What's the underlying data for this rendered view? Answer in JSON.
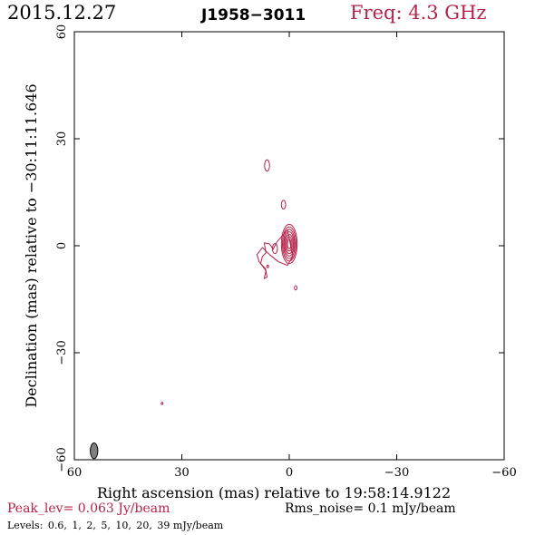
{
  "header": {
    "date": "2015.12.27",
    "source": "J1958−3011",
    "freq": "Freq: 4.3 GHz"
  },
  "footer": {
    "peak": "Peak_lev=  0.063 Jy/beam",
    "rms": "Rms_noise=   0.1 mJy/beam",
    "levels_label": "Levels:",
    "levels": [
      "0.6,",
      "1,",
      "2,",
      "5,",
      "10,",
      "20,",
      "39 mJy/beam"
    ]
  },
  "colors": {
    "contour": "#b5234a",
    "beam_fill": "#808080",
    "axis": "#000000"
  },
  "chart_data": {
    "type": "contour",
    "xlabel": "Right ascension (mas) relative to 19:58:14.9122",
    "ylabel": "Declination (mas) relative to −30:11:11.646",
    "xlim": [
      60,
      -60
    ],
    "ylim": [
      -60,
      60
    ],
    "xticks": [
      60,
      30,
      0,
      -30,
      -60
    ],
    "yticks": [
      -60,
      -30,
      0,
      30,
      60
    ],
    "xtick_labels": [
      "60",
      "30",
      "0",
      "−30",
      "−60"
    ],
    "ytick_labels": [
      "−60",
      "−30",
      "0",
      "30",
      "60"
    ],
    "beam": {
      "x": 54.5,
      "y": -57.5,
      "major": 4.4,
      "minor": 2.1,
      "pa_deg": 0
    },
    "core": {
      "x": 0,
      "y": 0.5,
      "major_half": [
        5.5,
        4.8,
        4.1,
        3.4,
        2.7,
        2.0,
        1.3
      ],
      "minor_half": [
        2.2,
        1.9,
        1.6,
        1.35,
        1.1,
        0.8,
        0.5
      ]
    },
    "components": [
      {
        "x": 6.2,
        "y": 22.5,
        "a": 0.7,
        "b": 1.6
      },
      {
        "x": 1.6,
        "y": 11.5,
        "a": 0.6,
        "b": 1.2
      },
      {
        "x": -1.8,
        "y": -11.8,
        "a": 0.35,
        "b": 0.6
      },
      {
        "x": 35.5,
        "y": -44.2,
        "a": 0.25,
        "b": 0.3
      }
    ],
    "extended_contour": [
      [
        0.5,
        4.5
      ],
      [
        3.5,
        1.0
      ],
      [
        4.5,
        -1.0
      ],
      [
        5.5,
        0.5
      ],
      [
        7.0,
        0.8
      ],
      [
        6.5,
        -2.0
      ],
      [
        7.5,
        -3.0
      ],
      [
        8.0,
        -5.0
      ],
      [
        6.5,
        -7.0
      ],
      [
        7.0,
        -9.2
      ],
      [
        6.2,
        -8.8
      ],
      [
        6.6,
        -6.5
      ],
      [
        8.4,
        -4.5
      ],
      [
        9.0,
        -2.5
      ],
      [
        7.5,
        -0.5
      ],
      [
        5.5,
        -2.5
      ],
      [
        3.0,
        -4.5
      ],
      [
        0.5,
        -5.5
      ],
      [
        -1.0,
        -3.0
      ],
      [
        0.5,
        4.5
      ]
    ],
    "inner_loops": [
      {
        "x": 4.0,
        "y": -0.8,
        "a": 0.7,
        "b": 1.4
      },
      {
        "x": 6.0,
        "y": -5.8,
        "a": 0.25,
        "b": 0.35
      }
    ]
  }
}
